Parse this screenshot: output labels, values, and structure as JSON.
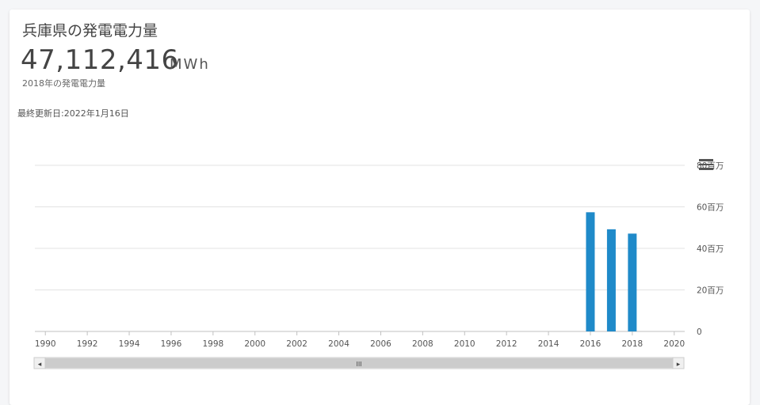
{
  "header": {
    "title": "兵庫県の発電電力量",
    "value": "47,112,416",
    "unit": "MWh",
    "caption": "2018年の発電電力量",
    "last_updated": "最終更新日:2022年1月16日"
  },
  "chart_data": {
    "type": "bar",
    "bar_color": "#1f8ac9",
    "x_ticks": [
      "1990",
      "1992",
      "1994",
      "1996",
      "1998",
      "2000",
      "2002",
      "2004",
      "2006",
      "2008",
      "2010",
      "2012",
      "2014",
      "2016",
      "2018",
      "2020"
    ],
    "x_range": [
      1989.5,
      2020.5
    ],
    "y_ticks": [
      "0",
      "20百万",
      "40百万",
      "60百万",
      "80百万"
    ],
    "y_tick_values": [
      0,
      20000000,
      40000000,
      60000000,
      80000000
    ],
    "ylim": [
      0,
      80000000
    ],
    "y_axis_side": "right",
    "grid": true,
    "points": [
      {
        "year": 2016,
        "value": 57400000
      },
      {
        "year": 2017,
        "value": 49200000
      },
      {
        "year": 2018,
        "value": 47112416
      }
    ]
  },
  "controls": {
    "menu_icon": "hamburger-menu-icon",
    "scrollbar_grip": "III",
    "scroll_left": "◂",
    "scroll_right": "▸"
  }
}
